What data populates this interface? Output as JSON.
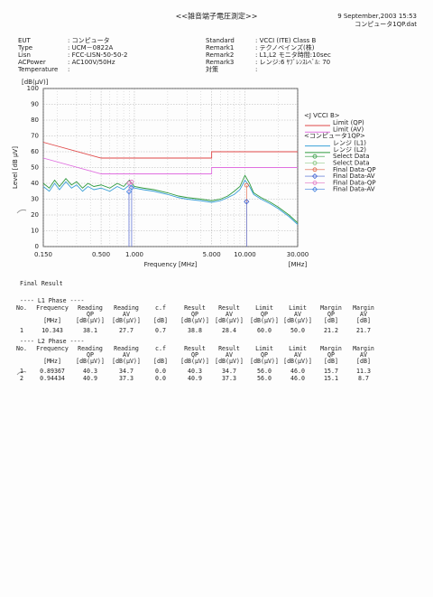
{
  "header": {
    "title": "<<雑音端子電圧測定>>",
    "date": "9 September,2003 15:53",
    "file": "コンピュータ1QP.dat"
  },
  "info_left": [
    {
      "label": "EUT",
      "value": ": コンピュータ"
    },
    {
      "label": "Type",
      "value": ": UCM－0822A"
    },
    {
      "label": "Lisn",
      "value": ": FCC-LISN-50-50-2"
    },
    {
      "label": "ACPower",
      "value": ": AC100V/50Hz"
    },
    {
      "label": "Temperature",
      "value": ":"
    }
  ],
  "info_right": [
    {
      "label": "Standard",
      "value": ": VCCI (ITE) Class B"
    },
    {
      "label": "Remark1",
      "value": ": テクノベインズ(株)"
    },
    {
      "label": "Remark2",
      "value": ": L1,L2  モニタ時間:10sec"
    },
    {
      "label": "Remark3",
      "value": ": レンジ:6  ｻﾌﾞﾚﾝｽﾚﾍﾞﾙ: 70"
    },
    {
      "label": "対策",
      "value": ":"
    }
  ],
  "chart_data": {
    "type": "line",
    "y_unit": "[dB(μV)]",
    "ylabel": "Level [dB μV]",
    "xlabel": "Frequency [MHz]",
    "x_unit": "[MHz]",
    "xscale": "log",
    "xlim": [
      0.15,
      30
    ],
    "ylim": [
      0,
      100
    ],
    "grid": true,
    "xticks": [
      {
        "value": 0.15,
        "label": "0.150"
      },
      {
        "value": 0.5,
        "label": "0.500"
      },
      {
        "value": 1,
        "label": "1.000"
      },
      {
        "value": 5,
        "label": "5.000"
      },
      {
        "value": 10,
        "label": "10.000"
      },
      {
        "value": 30,
        "label": "30.000"
      }
    ],
    "x_minor_grid": [
      0.2,
      0.3,
      0.4,
      0.6,
      0.7,
      0.8,
      0.9,
      2,
      3,
      4,
      6,
      7,
      8,
      9,
      20
    ],
    "yticks": [
      0,
      10,
      20,
      30,
      40,
      50,
      60,
      70,
      80,
      90,
      100
    ],
    "groups": [
      {
        "name": "<J VCCI B>",
        "series": [
          {
            "name": "Limit (QP)",
            "color": "#e04848",
            "style": "line",
            "x": [
              0.15,
              0.5,
              5,
              5,
              30
            ],
            "values": [
              66,
              56,
              56,
              60,
              60
            ]
          },
          {
            "name": "Limit (AV)",
            "color": "#e070e0",
            "style": "line",
            "x": [
              0.15,
              0.5,
              5,
              5,
              30
            ],
            "values": [
              56,
              46,
              46,
              50,
              50
            ]
          }
        ]
      },
      {
        "name": "<コンピュータ1QP>",
        "series": [
          {
            "name": "レンジ (L1)",
            "color": "#3aa0d8",
            "style": "line",
            "x": [
              0.15,
              0.17,
              0.19,
              0.21,
              0.24,
              0.27,
              0.3,
              0.34,
              0.38,
              0.43,
              0.5,
              0.6,
              0.7,
              0.8,
              0.9,
              1.0,
              1.2,
              1.5,
              2,
              2.5,
              3,
              4,
              5,
              6,
              7,
              8,
              9,
              10,
              11,
              12,
              14,
              17,
              20,
              25,
              30
            ],
            "values": [
              38,
              35,
              40,
              36,
              41,
              37,
              39,
              35,
              38,
              36,
              37,
              35,
              38,
              36,
              39,
              37,
              36,
              35,
              33,
              31,
              30,
              29,
              28,
              29,
              31,
              33,
              36,
              42,
              38,
              33,
              30,
              27,
              24,
              19,
              14
            ]
          },
          {
            "name": "レンジ (L2)",
            "color": "#2e9a3e",
            "style": "line",
            "x": [
              0.15,
              0.17,
              0.19,
              0.21,
              0.24,
              0.27,
              0.3,
              0.34,
              0.38,
              0.43,
              0.5,
              0.6,
              0.7,
              0.8,
              0.9,
              1.0,
              1.2,
              1.5,
              2,
              2.5,
              3,
              4,
              5,
              6,
              7,
              8,
              9,
              10,
              11,
              12,
              14,
              17,
              20,
              25,
              30
            ],
            "values": [
              40,
              37,
              42,
              38,
              43,
              39,
              41,
              37,
              40,
              38,
              39,
              37,
              40,
              38,
              42,
              38,
              37,
              36,
              34,
              32,
              31,
              30,
              29,
              30,
              32,
              35,
              38,
              45,
              40,
              34,
              31,
              28,
              25,
              20,
              15
            ]
          },
          {
            "name": "Select Data",
            "color": "#2e9a3e",
            "style": "points",
            "marker": "circle",
            "x": [],
            "values": []
          },
          {
            "name": "Select Data",
            "color": "#7ac070",
            "style": "points",
            "marker": "circle",
            "x": [],
            "values": []
          },
          {
            "name": "Final Data-QP",
            "color": "#e06040",
            "style": "points",
            "marker": "circle",
            "x": [
              10.343
            ],
            "values": [
              38.8
            ]
          },
          {
            "name": "Final Data-AV",
            "color": "#4060d0",
            "style": "points",
            "marker": "diamond",
            "x": [
              10.343
            ],
            "values": [
              28.4
            ]
          },
          {
            "name": "Final Data-QP",
            "color": "#e070c0",
            "style": "points",
            "marker": "circle",
            "x": [
              0.89367,
              0.94434
            ],
            "values": [
              40.3,
              40.9
            ]
          },
          {
            "name": "Final Data-AV",
            "color": "#4080e0",
            "style": "points",
            "marker": "diamond",
            "x": [
              0.89367,
              0.94434
            ],
            "values": [
              34.7,
              37.3
            ]
          }
        ]
      }
    ]
  },
  "final_result": {
    "title": "Final Result",
    "columns": [
      {
        "title": "No."
      },
      {
        "title": "Frequency",
        "unit": "[MHz]"
      },
      {
        "title": "Reading",
        "sub": "QP",
        "unit": "[dB(μV)]"
      },
      {
        "title": "Reading",
        "sub": "AV",
        "unit": "[dB(μV)]"
      },
      {
        "title": "c.f",
        "unit": "[dB]"
      },
      {
        "title": "Result",
        "sub": "QP",
        "unit": "[dB(μV)]"
      },
      {
        "title": "Result",
        "sub": "AV",
        "unit": "[dB(μV)]"
      },
      {
        "title": "Limit",
        "sub": "QP",
        "unit": "[dB(μV)]"
      },
      {
        "title": "Limit",
        "sub": "AV",
        "unit": "[dB(μV)]"
      },
      {
        "title": "Margin",
        "sub": "QP",
        "unit": "[dB]"
      },
      {
        "title": "Margin",
        "sub": "AV",
        "unit": "[dB]"
      }
    ],
    "phases": [
      {
        "label": "---- L1 Phase ----",
        "rows": [
          [
            "1",
            "10.343",
            "38.1",
            "27.7",
            "0.7",
            "38.8",
            "28.4",
            "60.0",
            "50.0",
            "21.2",
            "21.7"
          ]
        ]
      },
      {
        "label": "---- L2 Phase ----",
        "rows": [
          [
            "1",
            "0.89367",
            "40.3",
            "34.7",
            "0.0",
            "40.3",
            "34.7",
            "56.0",
            "46.0",
            "15.7",
            "11.3"
          ],
          [
            "2",
            "0.94434",
            "40.9",
            "37.3",
            "0.0",
            "40.9",
            "37.3",
            "56.0",
            "46.0",
            "15.1",
            "8.7"
          ]
        ]
      }
    ]
  }
}
